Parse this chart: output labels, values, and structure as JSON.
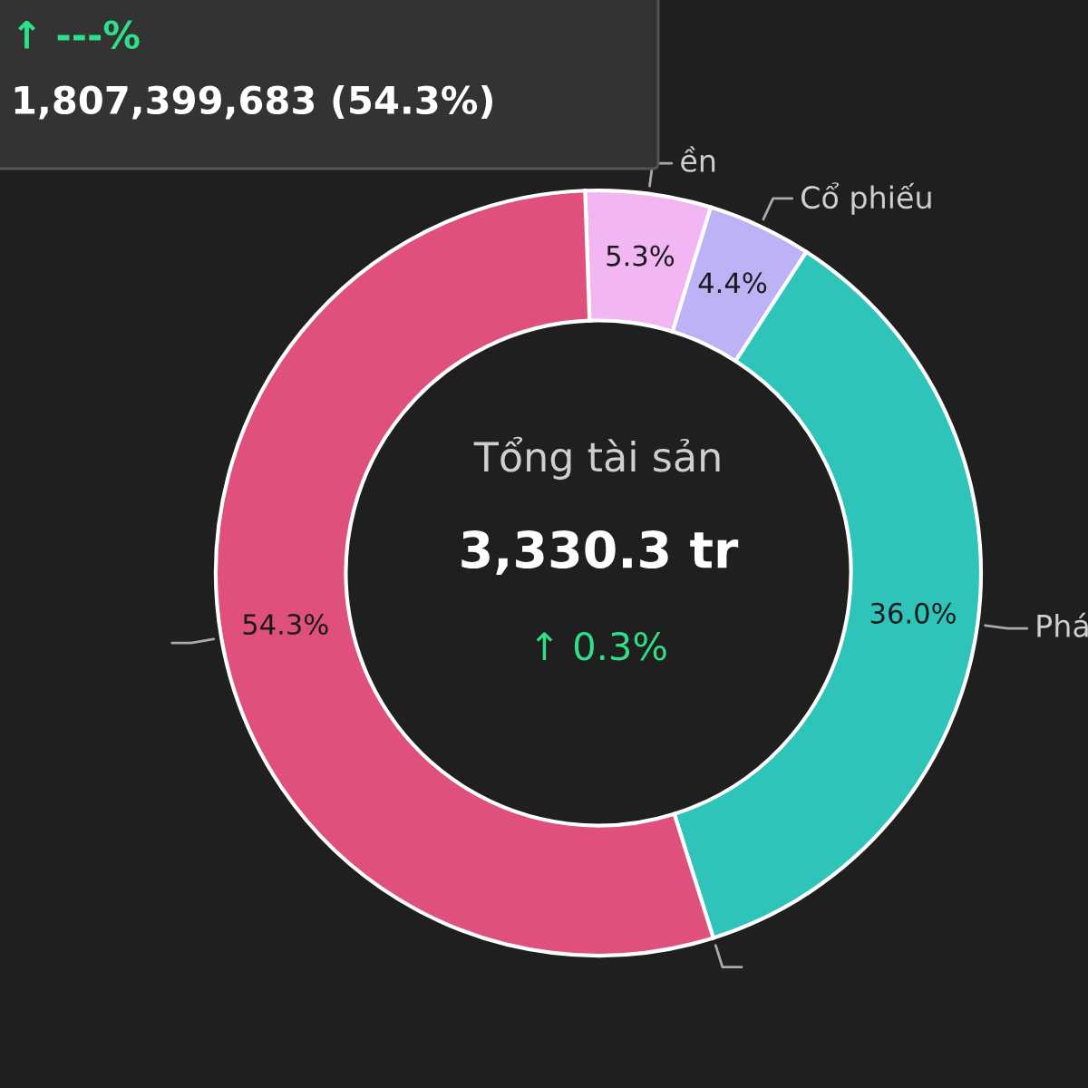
{
  "chart_data": {
    "type": "donut",
    "categories": [
      "ền",
      "Cổ phiếu",
      "Phá",
      null,
      null
    ],
    "values": [
      5.3,
      4.4,
      36.0,
      0,
      54.3
    ],
    "colors": [
      "#f2b6f2",
      "#bcb2f5",
      "#2ec4b9",
      "#2ec4b9",
      "#e0507c"
    ],
    "value_labels": [
      "5.3%",
      "4.4%",
      "36.0%",
      null,
      "54.3%"
    ],
    "annotations": [
      "Tổng tài sản",
      "3,330.3 tr",
      "↑ 0.3%",
      "↑ ---%",
      "1,807,399,683 (54.3%)"
    ]
  }
}
